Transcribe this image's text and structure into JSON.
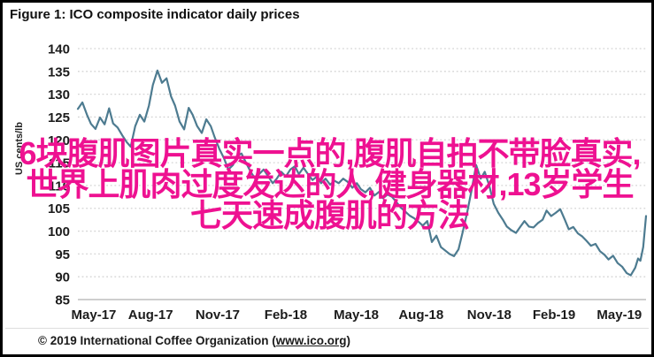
{
  "figure": {
    "title": "Figure 1: ICO composite indicator daily prices",
    "footer": {
      "prefix": "© 2019 International Coffee Organization (",
      "link": "www.ico.org",
      "suffix": ")"
    }
  },
  "watermark": {
    "color": "#ee1191",
    "lines": [
      "6块腹肌图片真实一点的,腹肌自拍不带脸真实,",
      "世界上肌肉过度发达的人,健身器材,13岁学生",
      "七天速成腹肌的方法"
    ]
  },
  "chart_data": {
    "type": "line",
    "title": "Figure 1: ICO composite indicator daily prices",
    "xlabel": "",
    "ylabel": "US cents/lb",
    "ylim": [
      85,
      140
    ],
    "y_ticks": [
      140,
      135,
      130,
      125,
      120,
      115,
      110,
      105,
      100,
      95,
      90,
      85
    ],
    "grid": "horizontal dotted, solid baseline at 85",
    "legend": "none",
    "line_color": "#4d7b90",
    "grid_color": "#d4d4d4",
    "baseline_color": "#bdbdbd",
    "x_ticks": [
      {
        "label": "May-17",
        "pos": 0.028
      },
      {
        "label": "Aug-17",
        "pos": 0.128
      },
      {
        "label": "Nov-17",
        "pos": 0.246
      },
      {
        "label": "Feb-18",
        "pos": 0.366
      },
      {
        "label": "May-18",
        "pos": 0.49
      },
      {
        "label": "Aug-18",
        "pos": 0.604
      },
      {
        "label": "Nov-18",
        "pos": 0.724
      },
      {
        "label": "Feb-19",
        "pos": 0.838
      },
      {
        "label": "May-19",
        "pos": 0.953
      }
    ],
    "series": [
      {
        "name": "ICO composite indicator daily price",
        "points": [
          [
            0,
            126.8
          ],
          [
            0.008,
            128.2
          ],
          [
            0.016,
            125.5
          ],
          [
            0.023,
            123.5
          ],
          [
            0.031,
            122.4
          ],
          [
            0.039,
            124.9
          ],
          [
            0.047,
            123.4
          ],
          [
            0.055,
            126.9
          ],
          [
            0.062,
            123.6
          ],
          [
            0.07,
            122.7
          ],
          [
            0.078,
            121
          ],
          [
            0.086,
            119.5
          ],
          [
            0.093,
            118.5
          ],
          [
            0.101,
            123
          ],
          [
            0.109,
            125.5
          ],
          [
            0.117,
            124
          ],
          [
            0.125,
            127.5
          ],
          [
            0.132,
            132
          ],
          [
            0.14,
            135.2
          ],
          [
            0.148,
            132.5
          ],
          [
            0.156,
            133.5
          ],
          [
            0.164,
            129.5
          ],
          [
            0.171,
            127.5
          ],
          [
            0.179,
            124
          ],
          [
            0.187,
            122.3
          ],
          [
            0.195,
            127
          ],
          [
            0.202,
            125.5
          ],
          [
            0.21,
            123
          ],
          [
            0.218,
            121.5
          ],
          [
            0.226,
            124.5
          ],
          [
            0.234,
            123
          ],
          [
            0.241,
            120.5
          ],
          [
            0.249,
            118
          ],
          [
            0.257,
            116
          ],
          [
            0.265,
            113.5
          ],
          [
            0.273,
            114.5
          ],
          [
            0.28,
            116.5
          ],
          [
            0.288,
            117
          ],
          [
            0.296,
            115
          ],
          [
            0.304,
            113
          ],
          [
            0.312,
            111.5
          ],
          [
            0.319,
            112.5
          ],
          [
            0.327,
            113.5
          ],
          [
            0.335,
            112
          ],
          [
            0.343,
            110.5
          ],
          [
            0.35,
            111.5
          ],
          [
            0.358,
            113
          ],
          [
            0.366,
            112
          ],
          [
            0.374,
            113.5
          ],
          [
            0.382,
            114.2
          ],
          [
            0.389,
            112.5
          ],
          [
            0.397,
            113.9
          ],
          [
            0.405,
            112.5
          ],
          [
            0.413,
            111.2
          ],
          [
            0.421,
            112
          ],
          [
            0.428,
            110.5
          ],
          [
            0.436,
            111.5
          ],
          [
            0.444,
            110.2
          ],
          [
            0.452,
            111
          ],
          [
            0.459,
            110.5
          ],
          [
            0.467,
            111.5
          ],
          [
            0.475,
            110.8
          ],
          [
            0.483,
            109.5
          ],
          [
            0.491,
            110.5
          ],
          [
            0.498,
            109.2
          ],
          [
            0.506,
            108.5
          ],
          [
            0.514,
            109.5
          ],
          [
            0.522,
            107.8
          ],
          [
            0.53,
            108.6
          ],
          [
            0.537,
            107.2
          ],
          [
            0.545,
            108
          ],
          [
            0.553,
            107.5
          ],
          [
            0.561,
            106.3
          ],
          [
            0.568,
            105.2
          ],
          [
            0.576,
            104.3
          ],
          [
            0.584,
            103.4
          ],
          [
            0.592,
            102.8
          ],
          [
            0.6,
            102
          ],
          [
            0.607,
            101.2
          ],
          [
            0.615,
            102.2
          ],
          [
            0.623,
            97.6
          ],
          [
            0.631,
            99
          ],
          [
            0.639,
            96.5
          ],
          [
            0.646,
            95.8
          ],
          [
            0.654,
            95
          ],
          [
            0.662,
            94.5
          ],
          [
            0.67,
            96
          ],
          [
            0.677,
            99.6
          ],
          [
            0.685,
            104
          ],
          [
            0.693,
            109
          ],
          [
            0.701,
            114.5
          ],
          [
            0.709,
            111.5
          ],
          [
            0.716,
            113
          ],
          [
            0.724,
            110
          ],
          [
            0.732,
            106
          ],
          [
            0.74,
            104
          ],
          [
            0.748,
            102.5
          ],
          [
            0.755,
            101
          ],
          [
            0.763,
            100.2
          ],
          [
            0.771,
            99.6
          ],
          [
            0.779,
            101
          ],
          [
            0.786,
            102.2
          ],
          [
            0.794,
            101
          ],
          [
            0.802,
            100.8
          ],
          [
            0.81,
            101.8
          ],
          [
            0.818,
            102.5
          ],
          [
            0.825,
            104.5
          ],
          [
            0.833,
            103.3
          ],
          [
            0.841,
            104
          ],
          [
            0.849,
            104.8
          ],
          [
            0.857,
            102.5
          ],
          [
            0.864,
            100.4
          ],
          [
            0.872,
            100.9
          ],
          [
            0.88,
            99.5
          ],
          [
            0.888,
            98.8
          ],
          [
            0.895,
            97.9
          ],
          [
            0.903,
            96.8
          ],
          [
            0.911,
            97.2
          ],
          [
            0.919,
            95.6
          ],
          [
            0.927,
            94.8
          ],
          [
            0.934,
            93.8
          ],
          [
            0.942,
            94.6
          ],
          [
            0.95,
            93
          ],
          [
            0.958,
            92.2
          ],
          [
            0.966,
            90.8
          ],
          [
            0.973,
            90.3
          ],
          [
            0.981,
            92
          ],
          [
            0.986,
            94
          ],
          [
            0.99,
            93.5
          ],
          [
            0.995,
            96.5
          ],
          [
            1,
            103.3
          ]
        ]
      }
    ]
  }
}
